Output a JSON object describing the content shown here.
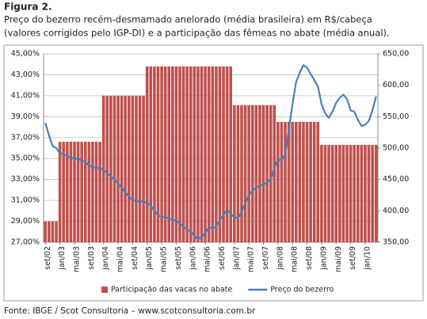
{
  "chart_data": {
    "type": "bar",
    "title": "Figura 2.",
    "subtitle": [
      "Preço do bezerro recém-desmamado anelorado (média brasileira) em R$/cabeça",
      "(valores corrigidos pelo IGP-DI) e a participação das fêmeas no abate (média anual)."
    ],
    "source": "Fonte: IBGE / Scot Consultoria – www.scotconsultoria.com.br",
    "categories": [
      "set/02",
      null,
      null,
      null,
      "jan/03",
      null,
      null,
      null,
      "mai/03",
      null,
      null,
      null,
      "set/03",
      null,
      null,
      null,
      "jan/04",
      null,
      null,
      null,
      "mai/04",
      null,
      null,
      null,
      "set/04",
      null,
      null,
      null,
      "jan/05",
      null,
      null,
      null,
      "mai/05",
      null,
      null,
      null,
      "set/05",
      null,
      null,
      null,
      "jan/06",
      null,
      null,
      null,
      "mai/06",
      null,
      null,
      null,
      "set/06",
      null,
      null,
      null,
      "jan/07",
      null,
      null,
      null,
      "mai/07",
      null,
      null,
      null,
      "set/07",
      null,
      null,
      null,
      "jan/08",
      null,
      null,
      null,
      "mai/08",
      null,
      null,
      null,
      "set/08",
      null,
      null,
      null,
      "jan/09",
      null,
      null,
      null,
      "mai/09",
      null,
      null,
      null,
      "set/09",
      null,
      null,
      null,
      "jan/10",
      null,
      null,
      null
    ],
    "series": [
      {
        "name": "Participação das vacas no abate",
        "type": "bar",
        "color": "#c0504d",
        "values": [
          29.0,
          29.0,
          29.0,
          29.0,
          36.6,
          36.6,
          36.6,
          36.6,
          36.6,
          36.6,
          36.6,
          36.6,
          36.6,
          36.6,
          36.6,
          36.6,
          41.0,
          41.0,
          41.0,
          41.0,
          41.0,
          41.0,
          41.0,
          41.0,
          41.0,
          41.0,
          41.0,
          41.0,
          43.8,
          43.8,
          43.8,
          43.8,
          43.8,
          43.8,
          43.8,
          43.8,
          43.8,
          43.8,
          43.8,
          43.8,
          43.8,
          43.8,
          43.8,
          43.8,
          43.8,
          43.8,
          43.8,
          43.8,
          43.8,
          43.8,
          43.8,
          43.8,
          40.1,
          40.1,
          40.1,
          40.1,
          40.1,
          40.1,
          40.1,
          40.1,
          40.1,
          40.1,
          40.1,
          40.1,
          38.5,
          38.5,
          38.5,
          38.5,
          38.5,
          38.5,
          38.5,
          38.5,
          38.5,
          38.5,
          38.5,
          38.5,
          36.3,
          36.3,
          36.3,
          36.3,
          36.3,
          36.3,
          36.3,
          36.3,
          36.3,
          36.3,
          36.3,
          36.3,
          36.3,
          36.3,
          36.3,
          36.3
        ]
      },
      {
        "name": "Preço do bezerro",
        "type": "line",
        "axis": "y2",
        "color": "#4a7ebb",
        "values": [
          540,
          520,
          503,
          500,
          492,
          490,
          487,
          485,
          483,
          483,
          480,
          478,
          472,
          470,
          468,
          468,
          465,
          460,
          455,
          450,
          443,
          437,
          430,
          422,
          418,
          415,
          415,
          414,
          413,
          408,
          400,
          393,
          390,
          390,
          388,
          386,
          384,
          380,
          375,
          370,
          367,
          360,
          355,
          358,
          365,
          374,
          372,
          375,
          385,
          393,
          402,
          395,
          390,
          388,
          398,
          412,
          425,
          432,
          437,
          440,
          442,
          445,
          450,
          468,
          482,
          480,
          490,
          530,
          570,
          605,
          620,
          632,
          628,
          618,
          608,
          598,
          570,
          555,
          548,
          558,
          572,
          580,
          585,
          578,
          560,
          558,
          545,
          535,
          537,
          543,
          560,
          582
        ]
      }
    ],
    "ylim": [
      27,
      45
    ],
    "yticks": [
      {
        "value": 27,
        "label": "27,00%"
      },
      {
        "value": 29,
        "label": "29,00%"
      },
      {
        "value": 31,
        "label": "31,00%"
      },
      {
        "value": 33,
        "label": "33,00%"
      },
      {
        "value": 35,
        "label": "35,00%"
      },
      {
        "value": 37,
        "label": "37,00%"
      },
      {
        "value": 39,
        "label": "39,00%"
      },
      {
        "value": 41,
        "label": "41,00%"
      },
      {
        "value": 43,
        "label": "43,00%"
      },
      {
        "value": 45,
        "label": "45,00%"
      }
    ],
    "y2lim": [
      350,
      650
    ],
    "y2ticks": [
      {
        "value": 350,
        "label": "350,00"
      },
      {
        "value": 400,
        "label": "400,00"
      },
      {
        "value": 450,
        "label": "450,00"
      },
      {
        "value": 500,
        "label": "500,00"
      },
      {
        "value": 550,
        "label": "550,00"
      },
      {
        "value": 600,
        "label": "600,00"
      },
      {
        "value": 650,
        "label": "650,00"
      }
    ],
    "grid": true
  }
}
